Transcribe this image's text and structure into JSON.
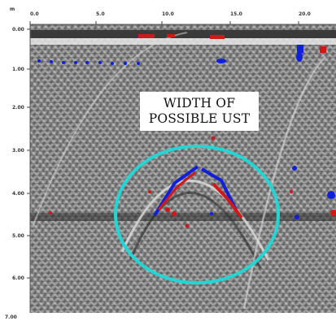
{
  "annotation": {
    "line1": "WIDTH OF",
    "line2": "POSSIBLE UST"
  },
  "axes": {
    "x_ticks": [
      "0.0",
      "5.0",
      "10.0",
      "15.0",
      "20.0"
    ],
    "y_ticks": [
      "0.00",
      "1.00",
      "2.00",
      "3.00",
      "4.00",
      "5.00",
      "6.00",
      "7.00"
    ],
    "corner_label": "m"
  },
  "colors": {
    "highlight_ellipse": "#22d6d6",
    "positive_reflection": "#d01818",
    "negative_reflection": "#1020d8",
    "background_gray": "#8a8a8a"
  },
  "ellipse_shape": "circle"
}
